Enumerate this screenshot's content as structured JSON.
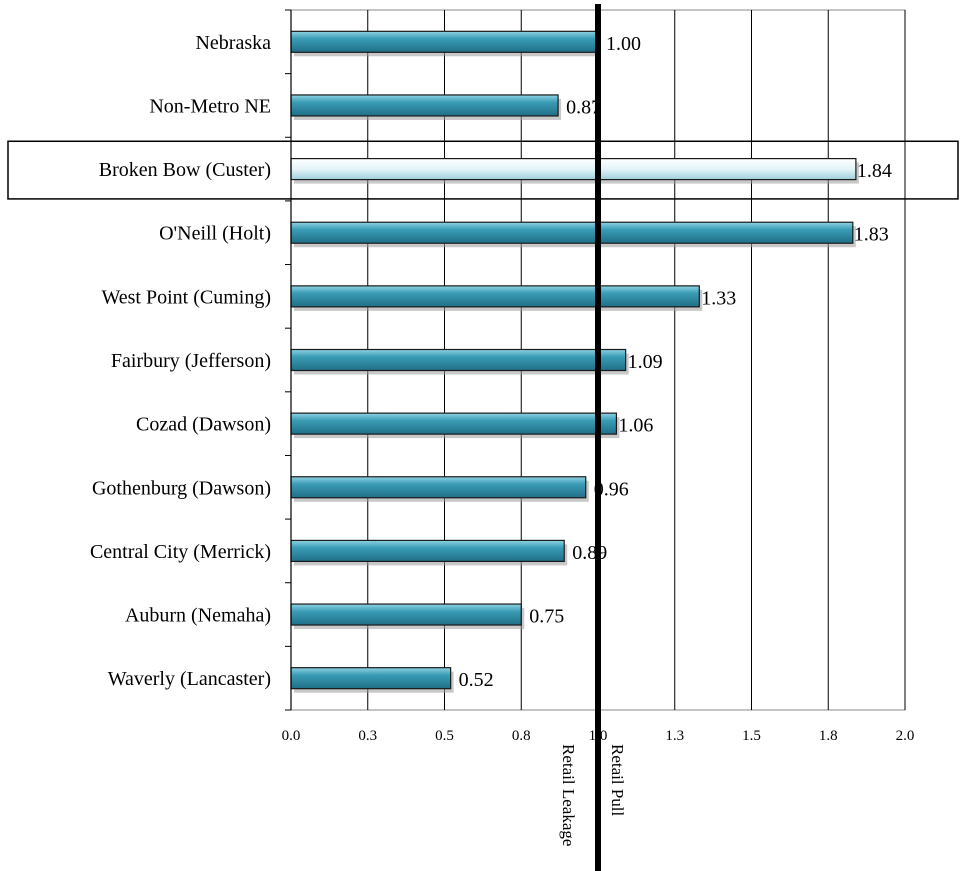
{
  "chart_data": {
    "type": "bar",
    "orientation": "horizontal",
    "title": "",
    "xlabel": "",
    "ylabel": "",
    "categories": [
      "Nebraska",
      "Non-Metro NE",
      "Broken Bow (Custer)",
      "O'Neill (Holt)",
      "West Point (Cuming)",
      "Fairbury (Jefferson)",
      "Cozad (Dawson)",
      "Gothenburg (Dawson)",
      "Central City (Merrick)",
      "Auburn (Nemaha)",
      "Waverly (Lancaster)"
    ],
    "values": [
      1.0,
      0.87,
      1.84,
      1.83,
      1.33,
      1.09,
      1.06,
      0.96,
      0.89,
      0.75,
      0.52
    ],
    "value_labels": [
      "1.00",
      "0.87",
      "1.84",
      "1.83",
      "1.33",
      "1.09",
      "1.06",
      "0.96",
      "0.89",
      "0.75",
      "0.52"
    ],
    "highlighted_category": "Broken Bow (Custer)",
    "xlim": [
      0,
      2.0
    ],
    "x_ticks": [
      0,
      0.25,
      0.5,
      0.75,
      1.0,
      1.25,
      1.5,
      1.75,
      2.0
    ],
    "x_tick_labels": [
      "0.0",
      "0.3",
      "0.5",
      "0.8",
      "1.0",
      "1.3",
      "1.5",
      "1.8",
      "2.0"
    ],
    "grid": "vertical",
    "legend": "none",
    "reference_line": {
      "value": 1.0,
      "label_left": "Retail Leakage",
      "label_right": "Retail Pull"
    },
    "colors": {
      "bar": "#3a9cb5",
      "bar_dark": "#1f6f86",
      "bar_light": "#7cc6d9",
      "highlight_bar": "#eaf7fa",
      "outline": "#1a1a1a",
      "reference": "#000000"
    }
  }
}
